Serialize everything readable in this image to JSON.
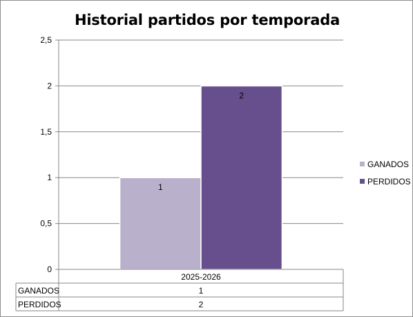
{
  "chart_data": {
    "type": "bar",
    "title": "Historial partidos por temporada",
    "categories": [
      "2025-2026"
    ],
    "series": [
      {
        "name": "GANADOS",
        "values": [
          1
        ],
        "color": "#B9B0CC"
      },
      {
        "name": "PERDIDOS",
        "values": [
          2
        ],
        "color": "#664F8C"
      }
    ],
    "y_ticks": [
      "0",
      "0,5",
      "1",
      "1,5",
      "2",
      "2,5"
    ],
    "ylim": [
      0,
      2.5
    ],
    "grid": true,
    "legend_position": "right",
    "data_labels": true,
    "data_table": true
  }
}
